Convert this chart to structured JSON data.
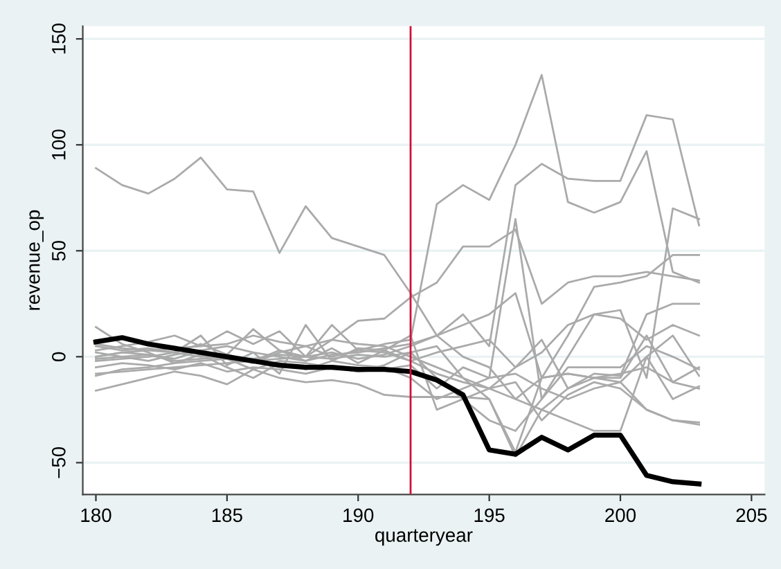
{
  "chart_data": {
    "type": "line",
    "xlabel": "quarteryear",
    "ylabel": "revenue_op",
    "x": [
      180,
      181,
      182,
      183,
      184,
      185,
      186,
      187,
      188,
      189,
      190,
      191,
      192,
      193,
      194,
      195,
      196,
      197,
      198,
      199,
      200,
      201,
      202,
      203
    ],
    "xlim": [
      179.5,
      205.5
    ],
    "xticks": [
      180,
      185,
      190,
      195,
      200,
      205
    ],
    "ylim": [
      -65,
      156
    ],
    "yticks": [
      {
        "value": -50,
        "label": "−50"
      },
      0,
      50,
      100,
      150
    ],
    "grid": "y",
    "legend": false,
    "marker": "none",
    "line_style": "solid",
    "ref_lines": [
      {
        "axis": "x",
        "value": 192,
        "color": "#d0103a"
      }
    ],
    "series": [
      {
        "color": "#aaaaaa",
        "values": [
          89,
          81,
          77,
          84,
          94,
          79,
          78,
          49,
          71,
          56,
          52,
          48,
          30,
          10,
          0,
          -5,
          -20,
          -10,
          -8,
          -10,
          -8,
          -5,
          -12,
          -15
        ]
      },
      {
        "color": "#aaaaaa",
        "values": [
          2,
          0,
          -2,
          1,
          3,
          0,
          -3,
          2,
          5,
          0,
          3,
          6,
          8,
          72,
          81,
          74,
          100,
          133,
          73,
          68,
          73,
          97,
          40,
          35
        ]
      },
      {
        "color": "#aaaaaa",
        "values": [
          0,
          2,
          1,
          -1,
          3,
          5,
          2,
          0,
          -2,
          1,
          2,
          4,
          6,
          10,
          20,
          5,
          81,
          91,
          84,
          83,
          83,
          114,
          112,
          62
        ]
      },
      {
        "color": "#aaaaaa",
        "values": [
          -8,
          -7,
          -6,
          -5,
          -4,
          -3,
          -2,
          -1,
          0,
          8,
          17,
          18,
          28,
          35,
          52,
          52,
          60,
          25,
          35,
          38,
          38,
          40,
          38,
          36
        ]
      },
      {
        "color": "#aaaaaa",
        "values": [
          5,
          3,
          4,
          2,
          6,
          1,
          -2,
          3,
          0,
          2,
          -1,
          1,
          5,
          10,
          15,
          20,
          30,
          -10,
          10,
          33,
          35,
          38,
          48,
          48
        ]
      },
      {
        "color": "#aaaaaa",
        "values": [
          14,
          6,
          2,
          -3,
          1,
          -5,
          -10,
          -3,
          -6,
          -2,
          -4,
          -5,
          -10,
          -20,
          -15,
          -10,
          65,
          -20,
          0,
          20,
          22,
          -10,
          70,
          65
        ]
      },
      {
        "color": "#aaaaaa",
        "values": [
          -16,
          -13,
          -10,
          -7,
          -9,
          -13,
          -6,
          -10,
          -12,
          -11,
          -13,
          -18,
          -19,
          -19,
          -19,
          -20,
          -45,
          -10,
          -8,
          -10,
          -10,
          10,
          -12,
          -5
        ]
      },
      {
        "color": "#aaaaaa",
        "values": [
          -2,
          -1,
          0,
          2,
          0,
          1,
          13,
          3,
          -2,
          4,
          -3,
          3,
          10,
          -25,
          -20,
          -30,
          -35,
          -20,
          -5,
          -5,
          -5,
          5,
          0,
          -6
        ]
      },
      {
        "color": "#aaaaaa",
        "values": [
          0,
          2,
          3,
          4,
          5,
          6,
          10,
          7,
          5,
          8,
          6,
          5,
          0,
          -5,
          -10,
          -20,
          -47,
          -25,
          -15,
          -10,
          -12,
          -25,
          -30,
          -32
        ]
      },
      {
        "color": "#aaaaaa",
        "values": [
          3,
          5,
          7,
          10,
          5,
          12,
          6,
          12,
          0,
          15,
          3,
          2,
          -2,
          -8,
          -12,
          -15,
          -20,
          -25,
          -30,
          -35,
          -35,
          0,
          -20,
          -14
        ]
      },
      {
        "color": "#aaaaaa",
        "values": [
          6,
          4,
          3,
          2,
          10,
          -4,
          2,
          -8,
          15,
          -2,
          4,
          3,
          -2,
          2,
          5,
          8,
          -5,
          2,
          15,
          20,
          18,
          8,
          15,
          10
        ]
      },
      {
        "color": "#aaaaaa",
        "values": [
          -5,
          -3,
          -4,
          -6,
          -3,
          -7,
          -5,
          -6,
          -8,
          -5,
          -7,
          -6,
          -4,
          -15,
          -5,
          -10,
          -8,
          -15,
          -20,
          -15,
          -12,
          0,
          10,
          -9
        ]
      },
      {
        "color": "#aaaaaa",
        "values": [
          -1,
          0,
          1,
          -2,
          -1,
          0,
          -1,
          1,
          0,
          -1,
          1,
          0,
          2,
          5,
          -10,
          -15,
          -5,
          8,
          -15,
          -8,
          -9,
          20,
          25,
          25
        ]
      },
      {
        "color": "#aaaaaa",
        "values": [
          -9,
          -6,
          -5,
          -3,
          -2,
          -1,
          -6,
          -2,
          -3,
          -5,
          -7,
          -4,
          2,
          -10,
          -20,
          -15,
          -12,
          -30,
          -18,
          -12,
          -15,
          -25,
          -30,
          -31
        ]
      },
      {
        "color": "#000000",
        "values": [
          7,
          9,
          6,
          4,
          2,
          0,
          -2,
          -4,
          -5,
          -5,
          -6,
          -6,
          -7,
          -11,
          -18,
          -44,
          -46,
          -38,
          -44,
          -37,
          -37,
          -56,
          -59,
          -60
        ]
      }
    ]
  }
}
